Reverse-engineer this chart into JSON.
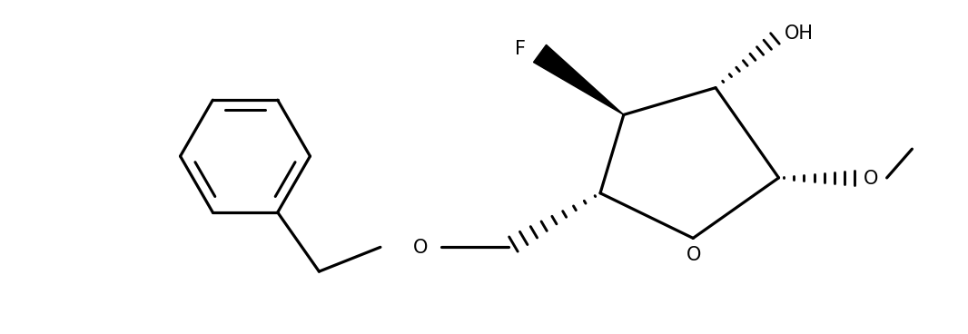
{
  "background": "#ffffff",
  "line_color": "#000000",
  "line_width": 2.3,
  "font_size": 15,
  "figsize": [
    10.66,
    3.68
  ],
  "dpi": 100,
  "ring_O_label": "O",
  "ether_O_label": "O",
  "OMe_label": "O",
  "OH_label": "OH",
  "F_label": "F",
  "methyl_label": ""
}
